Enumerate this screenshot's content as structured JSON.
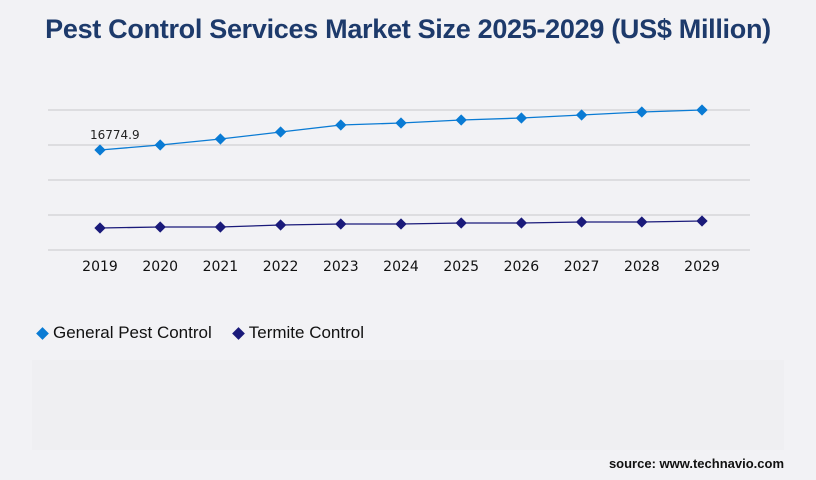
{
  "title": "Pest Control Services Market Size 2025-2029 (US$ Million)",
  "source": "source: www.technavio.com",
  "chart_data": {
    "type": "line",
    "title": "Pest Control Services Market Size 2025-2029 (US$ Million)",
    "categories": [
      "2019",
      "2020",
      "2021",
      "2022",
      "2023",
      "2024",
      "2025",
      "2026",
      "2027",
      "2028",
      "2029"
    ],
    "series": [
      {
        "name": "General Pest Control",
        "color": "#0a7bd4",
        "values": [
          16774.9,
          17614,
          18620,
          19795,
          20969,
          21304,
          21807,
          22143,
          22646,
          23150,
          23485
        ]
      },
      {
        "name": "Termite Control",
        "color": "#1a1a7a",
        "values": [
          3690,
          3858,
          3858,
          4194,
          4362,
          4362,
          4529,
          4529,
          4697,
          4697,
          4865
        ]
      }
    ],
    "data_labels": [
      {
        "series": 0,
        "index": 0,
        "text": "16774.9"
      }
    ],
    "ylim": [
      0,
      23485
    ],
    "grid": true,
    "legend": "bottom-left"
  }
}
